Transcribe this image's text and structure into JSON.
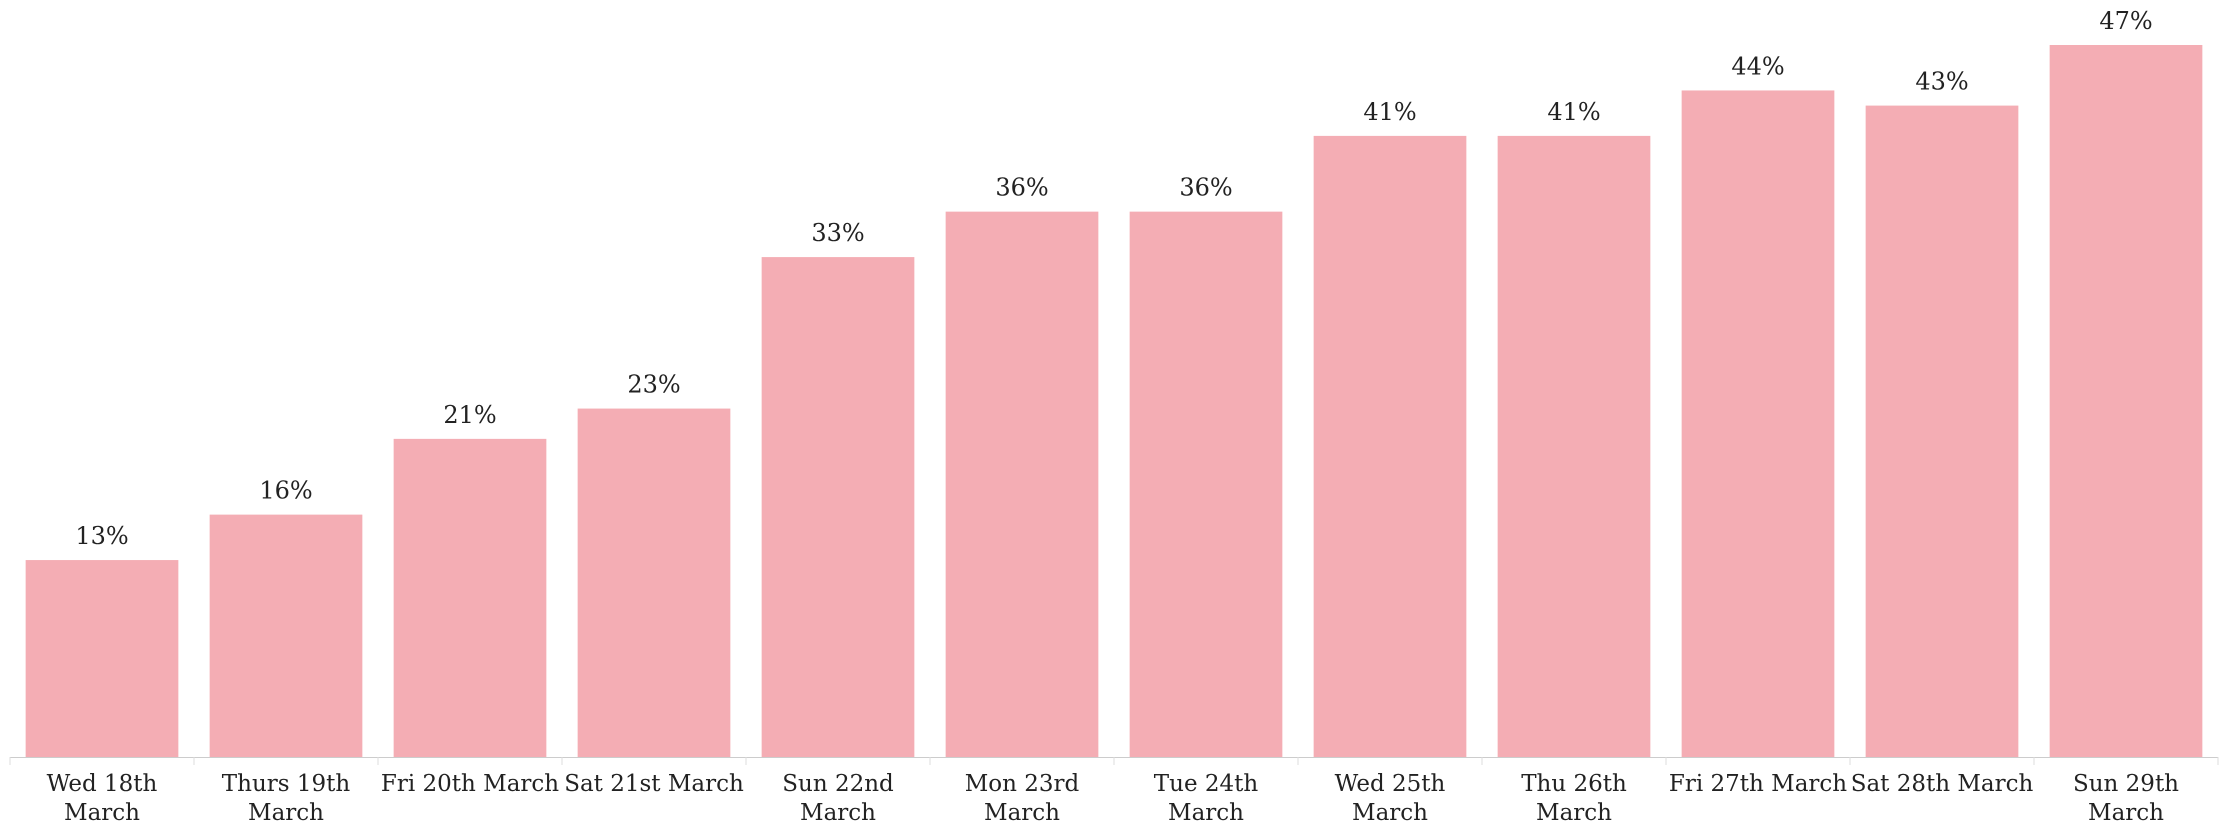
{
  "chart_data": {
    "type": "bar",
    "categories": [
      "Wed 18th March",
      "Thurs 19th March",
      "Fri 20th March",
      "Sat 21st March",
      "Sun 22nd March",
      "Mon 23rd March",
      "Tue 24th March",
      "Wed 25th March",
      "Thu 26th March",
      "Fri 27th March",
      "Sat 28th March",
      "Sun 29th March"
    ],
    "values": [
      13,
      16,
      21,
      23,
      33,
      36,
      36,
      41,
      41,
      44,
      43,
      47
    ],
    "value_labels": [
      "13%",
      "16%",
      "21%",
      "23%",
      "33%",
      "36%",
      "36%",
      "41%",
      "41%",
      "44%",
      "43%",
      "47%"
    ],
    "color": "#f4adb4"
  }
}
